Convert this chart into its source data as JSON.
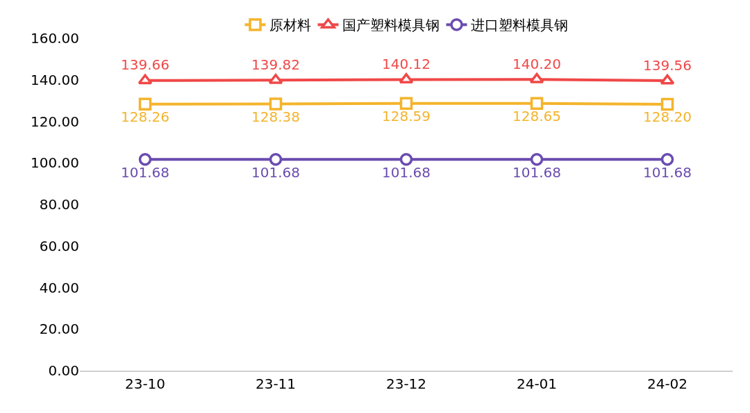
{
  "chart_data": {
    "type": "line",
    "categories": [
      "23-10",
      "23-11",
      "23-12",
      "24-01",
      "24-02"
    ],
    "series": [
      {
        "name": "原材料",
        "color": "#f4b42c",
        "marker": "square",
        "values": [
          128.26,
          128.38,
          128.59,
          128.65,
          128.2
        ],
        "value_labels": [
          "128.26",
          "128.38",
          "128.59",
          "128.65",
          "128.20"
        ]
      },
      {
        "name": "国产塑料模具钢",
        "color": "#f04848",
        "marker": "triangle",
        "values": [
          139.66,
          139.82,
          140.12,
          140.2,
          139.56
        ],
        "value_labels": [
          "139.66",
          "139.82",
          "140.12",
          "140.20",
          "139.56"
        ]
      },
      {
        "name": "进口塑料模具钢",
        "color": "#6a4cb0",
        "marker": "circle",
        "values": [
          101.68,
          101.68,
          101.68,
          101.68,
          101.68
        ],
        "value_labels": [
          "101.68",
          "101.68",
          "101.68",
          "101.68",
          "101.68"
        ]
      }
    ],
    "ylim": [
      0,
      160
    ],
    "yticks": [
      {
        "value": 0,
        "label": "0.00"
      },
      {
        "value": 20,
        "label": "20.00"
      },
      {
        "value": 40,
        "label": "40.00"
      },
      {
        "value": 60,
        "label": "60.00"
      },
      {
        "value": 80,
        "label": "80.00"
      },
      {
        "value": 100,
        "label": "100.00"
      },
      {
        "value": 120,
        "label": "120.00"
      },
      {
        "value": 140,
        "label": "140.00"
      },
      {
        "value": 160,
        "label": "160.00"
      }
    ],
    "legend": "top",
    "line_style": "solid"
  }
}
